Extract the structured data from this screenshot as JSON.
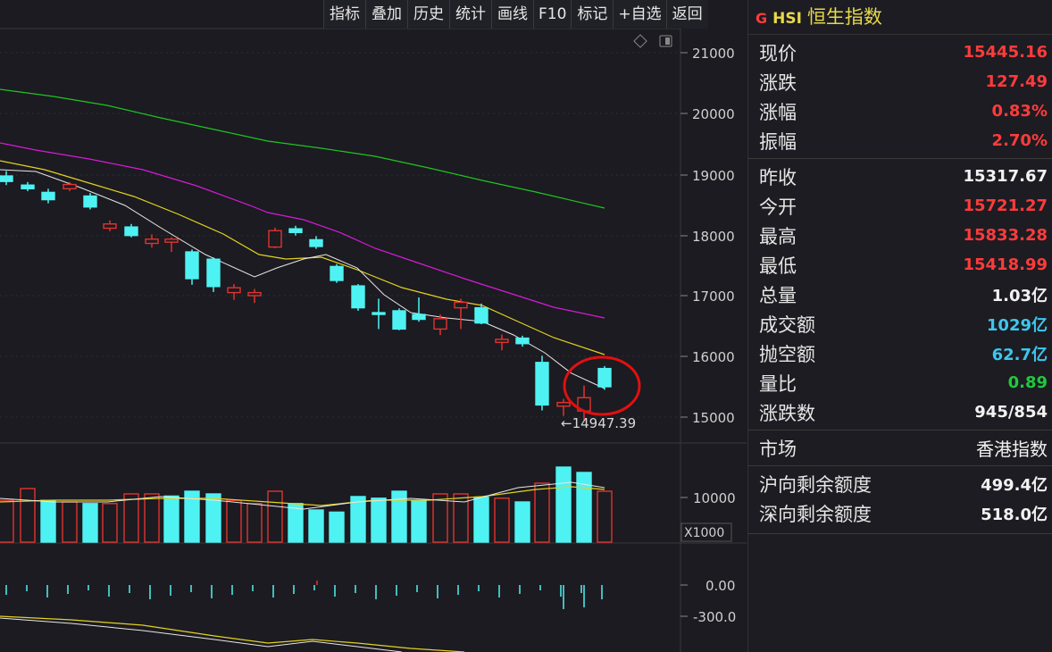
{
  "toolbar": {
    "buttons": [
      "指标",
      "叠加",
      "历史",
      "统计",
      "画线",
      "F10",
      "标记",
      "+自选",
      "返回"
    ]
  },
  "chart": {
    "price_axis": [
      "21000",
      "20000",
      "19000",
      "18000",
      "17000",
      "16000",
      "15000"
    ],
    "low_annotation": "←14947.39",
    "volume_axis": "10000",
    "volume_unit": "X1000",
    "macd_axis": [
      "0.00",
      "-300.0"
    ]
  },
  "panel": {
    "market_prefix": "G",
    "code": "HSI",
    "name": "恒生指数",
    "quote_rows": [
      {
        "label": "现价",
        "value": "15445.16",
        "color": "red"
      },
      {
        "label": "涨跌",
        "value": "127.49",
        "color": "red"
      },
      {
        "label": "涨幅",
        "value": "0.83%",
        "color": "red"
      },
      {
        "label": "振幅",
        "value": "2.70%",
        "color": "red"
      }
    ],
    "detail_rows": [
      {
        "label": "昨收",
        "value": "15317.67",
        "color": "white"
      },
      {
        "label": "今开",
        "value": "15721.27",
        "color": "red"
      },
      {
        "label": "最高",
        "value": "15833.28",
        "color": "red"
      },
      {
        "label": "最低",
        "value": "15418.99",
        "color": "red"
      },
      {
        "label": "总量",
        "value": "1.03亿",
        "color": "white"
      },
      {
        "label": "成交额",
        "value": "1029亿",
        "color": "cyan"
      },
      {
        "label": "抛空额",
        "value": "62.7亿",
        "color": "cyan"
      },
      {
        "label": "量比",
        "value": "0.89",
        "color": "green"
      },
      {
        "label": "涨跌数",
        "value": "945/854",
        "color": "white"
      }
    ],
    "market": {
      "label": "市场",
      "value": "香港指数"
    },
    "quota_rows": [
      {
        "label": "沪向剩余额度",
        "value": "499.4亿"
      },
      {
        "label": "深向剩余额度",
        "value": "518.0亿"
      }
    ]
  },
  "colors": {
    "up": "#e0342f",
    "down": "#4ff2f2",
    "ma5": "#e8e8e8",
    "ma10": "#e4d11f",
    "ma20": "#d81ad8",
    "ma60": "#1fc51f",
    "highlight": "#e11010"
  }
}
